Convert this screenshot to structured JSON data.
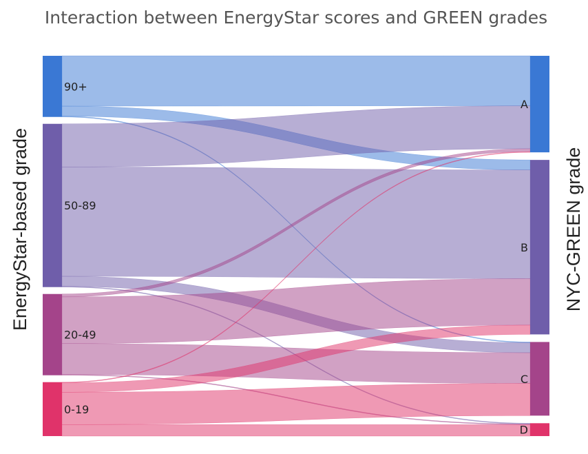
{
  "chart_data": {
    "type": "sankey",
    "title": "Interaction between EnergyStar scores and GREEN grades",
    "left_axis_label": "EnergyStar-based grade",
    "right_axis_label": "NYC-GREEN grade",
    "source_nodes": [
      {
        "label": "90+",
        "color": "#3a78d4"
      },
      {
        "label": "50-89",
        "color": "#6f5eaa"
      },
      {
        "label": "20-49",
        "color": "#a4448a"
      },
      {
        "label": "0-19",
        "color": "#e0336a"
      }
    ],
    "target_nodes": [
      {
        "label": "A",
        "color": "#3a78d4"
      },
      {
        "label": "B",
        "color": "#6f5eaa"
      },
      {
        "label": "C",
        "color": "#a4448a"
      },
      {
        "label": "D",
        "color": "#e0336a"
      }
    ],
    "links": [
      {
        "source": "90+",
        "target": "A",
        "value": 70
      },
      {
        "source": "90+",
        "target": "B",
        "value": 14
      },
      {
        "source": "90+",
        "target": "C",
        "value": 1
      },
      {
        "source": "50-89",
        "target": "A",
        "value": 60
      },
      {
        "source": "50-89",
        "target": "B",
        "value": 152
      },
      {
        "source": "50-89",
        "target": "C",
        "value": 14
      },
      {
        "source": "50-89",
        "target": "D",
        "value": 1
      },
      {
        "source": "20-49",
        "target": "A",
        "value": 4
      },
      {
        "source": "20-49",
        "target": "B",
        "value": 65
      },
      {
        "source": "20-49",
        "target": "C",
        "value": 43
      },
      {
        "source": "20-49",
        "target": "D",
        "value": 1
      },
      {
        "source": "0-19",
        "target": "A",
        "value": 1
      },
      {
        "source": "0-19",
        "target": "B",
        "value": 13
      },
      {
        "source": "0-19",
        "target": "C",
        "value": 45
      },
      {
        "source": "0-19",
        "target": "D",
        "value": 16
      }
    ]
  }
}
